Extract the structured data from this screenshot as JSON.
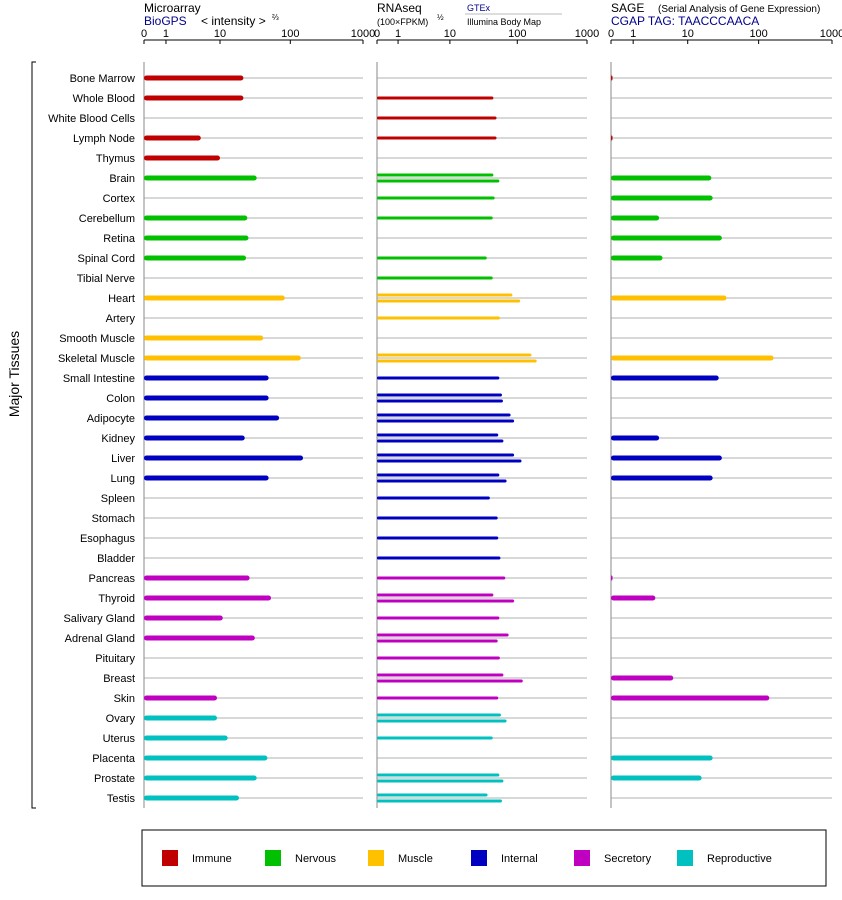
{
  "panels": {
    "microarray": {
      "title": "Microarray",
      "source": "BioGPS",
      "metric": "< intensity >",
      "metric_exp": "⅔"
    },
    "rnaseq": {
      "title": "RNAseq",
      "metric": "(100×FPKM)",
      "metric_exp": "½",
      "source1": "GTEx",
      "source2": "Illumina Body Map"
    },
    "sage": {
      "title": "SAGE",
      "subtitle": "(Serial Analysis of Gene Expression)",
      "tag": "CGAP TAG: TAACCCAACA"
    }
  },
  "y_axis_label": "Major Tissues",
  "colors": {
    "Immune": "#c00000",
    "Nervous": "#00c000",
    "Muscle": "#ffc000",
    "Internal": "#0000c0",
    "Secretory": "#c000c0",
    "Reproductive": "#00c0c0",
    "rnaseq_source1": "#00008b",
    "tag_text": "#00008b"
  },
  "legend": [
    {
      "label": "Immune",
      "color": "#c00000"
    },
    {
      "label": "Nervous",
      "color": "#00c000"
    },
    {
      "label": "Muscle",
      "color": "#ffc000"
    },
    {
      "label": "Internal",
      "color": "#0000c0"
    },
    {
      "label": "Secretory",
      "color": "#c000c0"
    },
    {
      "label": "Reproductive",
      "color": "#00c0c0"
    }
  ],
  "chart_data": {
    "type": "bar",
    "orientation": "horizontal",
    "x_scale": "log",
    "x_ticks": [
      0,
      1,
      10,
      100,
      1000
    ],
    "x_tick_labels": [
      "0",
      "1",
      "10",
      "100",
      "1000"
    ],
    "xlim": [
      0,
      1000
    ],
    "categories": [
      "Bone Marrow",
      "Whole Blood",
      "White Blood Cells",
      "Lymph Node",
      "Thymus",
      "Brain",
      "Cortex",
      "Cerebellum",
      "Retina",
      "Spinal Cord",
      "Tibial Nerve",
      "Heart",
      "Artery",
      "Smooth Muscle",
      "Skeletal Muscle",
      "Small Intestine",
      "Colon",
      "Adipocyte",
      "Kidney",
      "Liver",
      "Lung",
      "Spleen",
      "Stomach",
      "Esophagus",
      "Bladder",
      "Pancreas",
      "Thyroid",
      "Salivary Gland",
      "Adrenal Gland",
      "Pituitary",
      "Breast",
      "Skin",
      "Ovary",
      "Uterus",
      "Placenta",
      "Prostate",
      "Testis"
    ],
    "category_groups": [
      "Immune",
      "Immune",
      "Immune",
      "Immune",
      "Immune",
      "Nervous",
      "Nervous",
      "Nervous",
      "Nervous",
      "Nervous",
      "Nervous",
      "Muscle",
      "Muscle",
      "Muscle",
      "Muscle",
      "Internal",
      "Internal",
      "Internal",
      "Internal",
      "Internal",
      "Internal",
      "Internal",
      "Internal",
      "Internal",
      "Internal",
      "Secretory",
      "Secretory",
      "Secretory",
      "Secretory",
      "Secretory",
      "Secretory",
      "Secretory",
      "Reproductive",
      "Reproductive",
      "Reproductive",
      "Reproductive",
      "Reproductive"
    ],
    "series": [
      {
        "name": "BioGPS",
        "values": [
          22,
          22,
          null,
          5,
          10,
          34,
          null,
          25,
          26,
          24,
          null,
          84,
          null,
          42,
          140,
          50,
          50,
          70,
          23,
          150,
          50,
          null,
          null,
          null,
          null,
          27,
          54,
          11,
          32,
          null,
          null,
          9,
          9,
          13,
          48,
          34,
          19
        ]
      },
      {
        "name": "GTEx",
        "values": [
          null,
          45,
          50,
          null,
          null,
          45,
          47,
          44,
          null,
          36,
          44,
          85,
          null,
          null,
          160,
          55,
          60,
          80,
          53,
          90,
          55,
          40,
          52,
          53,
          null,
          67,
          45,
          55,
          75,
          56,
          63,
          53,
          58,
          44,
          null,
          55,
          37
        ]
      },
      {
        "name": "Illumina Body Map",
        "values": [
          null,
          null,
          null,
          50,
          null,
          55,
          null,
          null,
          null,
          null,
          null,
          110,
          56,
          null,
          190,
          null,
          62,
          90,
          63,
          115,
          70,
          null,
          null,
          null,
          57,
          null,
          90,
          null,
          52,
          null,
          120,
          null,
          70,
          null,
          null,
          63,
          60
        ]
      },
      {
        "name": "SAGE",
        "values": [
          0.05,
          null,
          null,
          0.05,
          null,
          22,
          23,
          3.5,
          31,
          4,
          null,
          36,
          null,
          null,
          160,
          28,
          null,
          null,
          3.5,
          31,
          23,
          null,
          null,
          null,
          null,
          0.05,
          3,
          null,
          null,
          null,
          6,
          140,
          null,
          null,
          23,
          16,
          null
        ]
      }
    ]
  }
}
